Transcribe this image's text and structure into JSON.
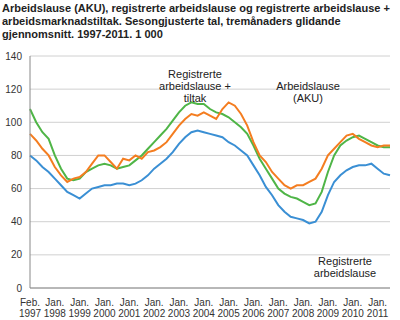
{
  "chart_data": {
    "type": "line",
    "title": "Arbeidslause (AKU), registrerte arbeidslause og registrerte arbeidslause + arbeidsmarknadstiltak. Sesongjusterte tal, tremånaders glidande gjennomsnitt. 1997-2011. 1 000",
    "categories": [
      "Feb. 1997",
      null,
      null,
      null,
      "Jan. 1998",
      null,
      null,
      null,
      "Jan. 1999",
      null,
      null,
      null,
      "Jan. 2000",
      null,
      null,
      null,
      "Jan. 2001",
      null,
      null,
      null,
      "Jan. 2002",
      null,
      null,
      null,
      "Jan. 2003",
      null,
      null,
      null,
      "Jan. 2004",
      null,
      null,
      null,
      "Jan. 2005",
      null,
      null,
      null,
      "Jan. 2006",
      null,
      null,
      null,
      "Jan. 2007",
      null,
      null,
      null,
      "Jan. 2008",
      null,
      null,
      null,
      "Jan. 2009",
      null,
      null,
      null,
      "Jan. 2010",
      null,
      null,
      null,
      "Jan. 2011",
      null,
      null
    ],
    "series": [
      {
        "name": "Registrerte arbeidslause + tiltak",
        "color": "#4fb547",
        "values": [
          108,
          100,
          94,
          90,
          80,
          72,
          66,
          65,
          66,
          70,
          72,
          74,
          75,
          74,
          72,
          73,
          74,
          77,
          80,
          84,
          88,
          92,
          96,
          101,
          106,
          110,
          112,
          111,
          111,
          108,
          106,
          105,
          103,
          100,
          97,
          93,
          86,
          78,
          72,
          66,
          60,
          57,
          55,
          54,
          52,
          50,
          51,
          58,
          70,
          80,
          86,
          89,
          91,
          92,
          90,
          88,
          86,
          85,
          85
        ]
      },
      {
        "name": "Arbeidslause (AKU)",
        "color": "#f47d20",
        "values": [
          93,
          89,
          84,
          80,
          73,
          68,
          64,
          66,
          67,
          70,
          75,
          80,
          80,
          76,
          72,
          78,
          77,
          80,
          78,
          82,
          83,
          85,
          88,
          93,
          98,
          102,
          105,
          104,
          106,
          104,
          102,
          108,
          112,
          110,
          105,
          98,
          88,
          80,
          76,
          70,
          66,
          62,
          60,
          62,
          62,
          64,
          66,
          72,
          80,
          84,
          88,
          92,
          93,
          90,
          88,
          86,
          85,
          86,
          86
        ]
      },
      {
        "name": "Registrerte arbeidslause",
        "color": "#3a8fd4",
        "values": [
          80,
          77,
          73,
          70,
          66,
          62,
          58,
          56,
          54,
          57,
          60,
          61,
          62,
          62,
          63,
          63,
          62,
          63,
          65,
          68,
          72,
          75,
          78,
          82,
          87,
          91,
          94,
          95,
          94,
          93,
          92,
          91,
          88,
          86,
          83,
          80,
          74,
          68,
          61,
          56,
          50,
          46,
          43,
          42,
          41,
          39,
          40,
          46,
          56,
          64,
          68,
          71,
          73,
          74,
          74,
          75,
          72,
          69,
          68
        ]
      }
    ],
    "ylim": [
      0,
      140
    ],
    "yticks": [
      0,
      20,
      40,
      60,
      80,
      100,
      120,
      140
    ],
    "grid": true
  }
}
